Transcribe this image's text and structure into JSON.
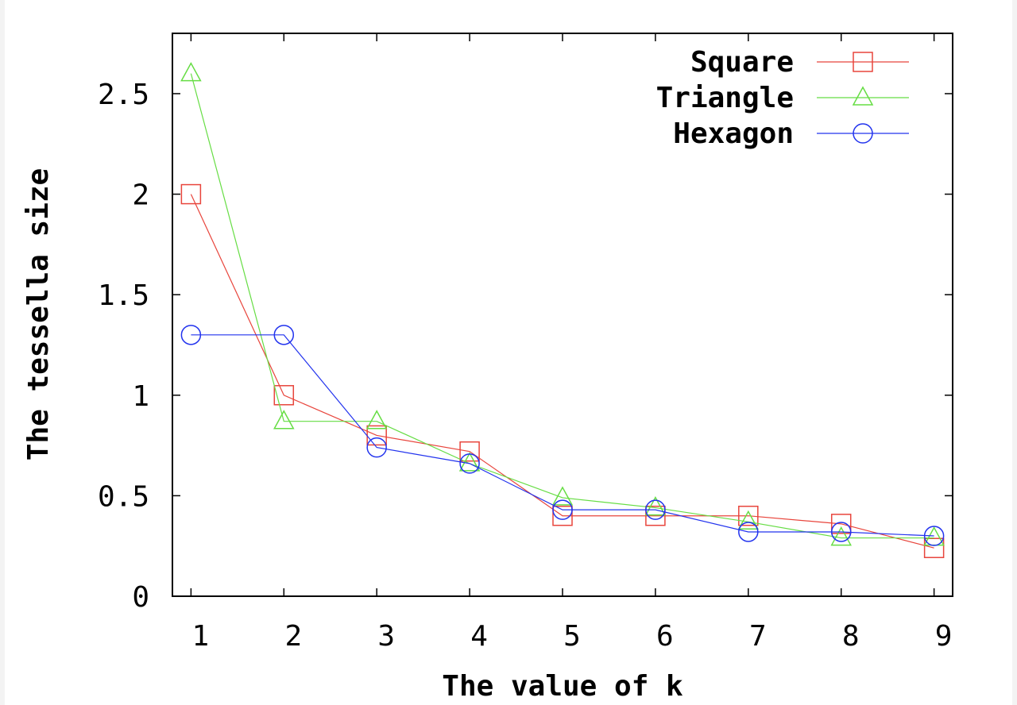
{
  "chart_data": {
    "type": "line",
    "title": "",
    "xlabel": "The value of k",
    "ylabel": "The tessella size",
    "x": [
      1,
      2,
      3,
      4,
      5,
      6,
      7,
      8,
      9
    ],
    "xlim": [
      0.8,
      9.2
    ],
    "ylim": [
      0,
      2.8
    ],
    "xticks": [
      1,
      2,
      3,
      4,
      5,
      6,
      7,
      8,
      9
    ],
    "yticks": [
      0,
      0.5,
      1,
      1.5,
      2,
      2.5
    ],
    "ytick_labels": [
      "0",
      "0.5",
      "1",
      "1.5",
      "2",
      "2.5"
    ],
    "grid": false,
    "legend_position": "top-right",
    "series": [
      {
        "name": "Square",
        "marker": "square",
        "color": "#e8453c",
        "values": [
          2.0,
          1.0,
          0.8,
          0.72,
          0.4,
          0.4,
          0.4,
          0.36,
          0.24
        ]
      },
      {
        "name": "Triangle",
        "marker": "triangle",
        "color": "#66dd44",
        "values": [
          2.6,
          0.87,
          0.87,
          0.66,
          0.49,
          0.44,
          0.37,
          0.29,
          0.29
        ]
      },
      {
        "name": "Hexagon",
        "marker": "circle",
        "color": "#2233ee",
        "values": [
          1.3,
          1.3,
          0.74,
          0.66,
          0.43,
          0.43,
          0.32,
          0.32,
          0.3
        ]
      }
    ]
  }
}
